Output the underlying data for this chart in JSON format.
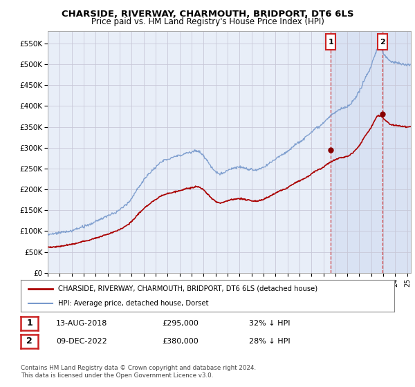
{
  "title": "CHARSIDE, RIVERWAY, CHARMOUTH, BRIDPORT, DT6 6LS",
  "subtitle": "Price paid vs. HM Land Registry's House Price Index (HPI)",
  "ylabel_ticks": [
    "£0",
    "£50K",
    "£100K",
    "£150K",
    "£200K",
    "£250K",
    "£300K",
    "£350K",
    "£400K",
    "£450K",
    "£500K",
    "£550K"
  ],
  "ytick_values": [
    0,
    50000,
    100000,
    150000,
    200000,
    250000,
    300000,
    350000,
    400000,
    450000,
    500000,
    550000
  ],
  "ylim": [
    0,
    580000
  ],
  "xlim_start": 1995.0,
  "xlim_end": 2025.3,
  "legend_line1": "CHARSIDE, RIVERWAY, CHARMOUTH, BRIDPORT, DT6 6LS (detached house)",
  "legend_line2": "HPI: Average price, detached house, Dorset",
  "sale1_label": "1",
  "sale1_date": "13-AUG-2018",
  "sale1_price": "£295,000",
  "sale1_hpi": "32% ↓ HPI",
  "sale1_x": 2018.62,
  "sale1_y": 295000,
  "sale2_label": "2",
  "sale2_date": "09-DEC-2022",
  "sale2_price": "£380,000",
  "sale2_hpi": "28% ↓ HPI",
  "sale2_x": 2022.94,
  "sale2_y": 380000,
  "footnote": "Contains HM Land Registry data © Crown copyright and database right 2024.\nThis data is licensed under the Open Government Licence v3.0.",
  "bg_color": "#ffffff",
  "plot_bg_color": "#e8eef8",
  "grid_color": "#c8c8d8",
  "red_line_color": "#aa0000",
  "blue_line_color": "#7799cc",
  "sale_marker_color": "#880000",
  "vline_color": "#cc2222",
  "box_color": "#cc2222",
  "highlight_bg_color": "#ccd8f0",
  "highlight_alpha": 0.5
}
